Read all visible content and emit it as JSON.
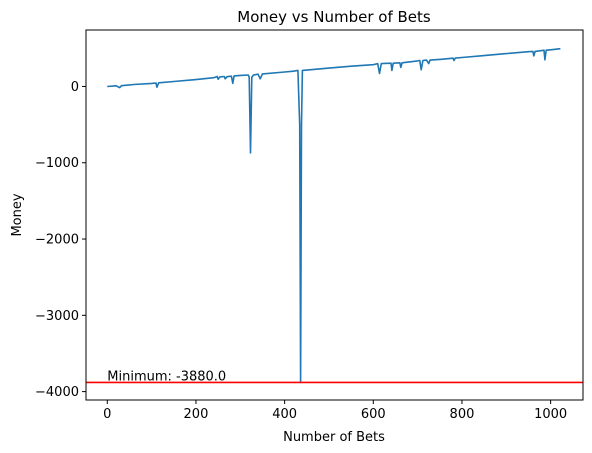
{
  "chart_data": {
    "type": "line",
    "title": "Money vs Number of Bets",
    "xlabel": "Number of Bets",
    "ylabel": "Money",
    "xlim": [
      -48,
      1073
    ],
    "ylim": [
      -4110,
      740
    ],
    "xticks": [
      0,
      200,
      400,
      600,
      800,
      1000
    ],
    "yticks": [
      0,
      -1000,
      -2000,
      -3000,
      -4000
    ],
    "ytick_labels": [
      "0",
      "−1000",
      "−2000",
      "−3000",
      "−4000"
    ],
    "grid": false,
    "series": [
      {
        "color": "#1f77b4",
        "points": [
          [
            0,
            0
          ],
          [
            20,
            8
          ],
          [
            28,
            -15
          ],
          [
            32,
            10
          ],
          [
            60,
            25
          ],
          [
            100,
            40
          ],
          [
            110,
            45
          ],
          [
            112,
            -10
          ],
          [
            116,
            48
          ],
          [
            150,
            65
          ],
          [
            200,
            90
          ],
          [
            240,
            115
          ],
          [
            248,
            130
          ],
          [
            250,
            95
          ],
          [
            254,
            125
          ],
          [
            264,
            130
          ],
          [
            266,
            100
          ],
          [
            270,
            128
          ],
          [
            280,
            135
          ],
          [
            283,
            40
          ],
          [
            286,
            138
          ],
          [
            300,
            145
          ],
          [
            318,
            150
          ],
          [
            320,
            120
          ],
          [
            323,
            -870
          ],
          [
            326,
            120
          ],
          [
            330,
            150
          ],
          [
            340,
            160
          ],
          [
            345,
            100
          ],
          [
            350,
            165
          ],
          [
            400,
            190
          ],
          [
            420,
            200
          ],
          [
            430,
            210
          ],
          [
            434,
            -500
          ],
          [
            436,
            -3880
          ],
          [
            438,
            -500
          ],
          [
            440,
            210
          ],
          [
            450,
            215
          ],
          [
            500,
            240
          ],
          [
            550,
            265
          ],
          [
            600,
            285
          ],
          [
            610,
            300
          ],
          [
            614,
            170
          ],
          [
            618,
            300
          ],
          [
            640,
            305
          ],
          [
            642,
            210
          ],
          [
            645,
            305
          ],
          [
            660,
            310
          ],
          [
            662,
            250
          ],
          [
            665,
            310
          ],
          [
            700,
            335
          ],
          [
            705,
            340
          ],
          [
            708,
            220
          ],
          [
            712,
            340
          ],
          [
            720,
            345
          ],
          [
            725,
            300
          ],
          [
            728,
            345
          ],
          [
            750,
            355
          ],
          [
            780,
            370
          ],
          [
            782,
            340
          ],
          [
            785,
            372
          ],
          [
            800,
            380
          ],
          [
            850,
            405
          ],
          [
            900,
            430
          ],
          [
            950,
            455
          ],
          [
            960,
            460
          ],
          [
            962,
            400
          ],
          [
            965,
            460
          ],
          [
            980,
            470
          ],
          [
            985,
            475
          ],
          [
            987,
            350
          ],
          [
            990,
            475
          ],
          [
            1000,
            480
          ],
          [
            1022,
            495
          ]
        ]
      }
    ],
    "hline": {
      "y": -3880,
      "color": "#ff0000"
    },
    "annotation": {
      "text": "Minimum: -3880.0",
      "x": 0,
      "y": -3880
    }
  }
}
